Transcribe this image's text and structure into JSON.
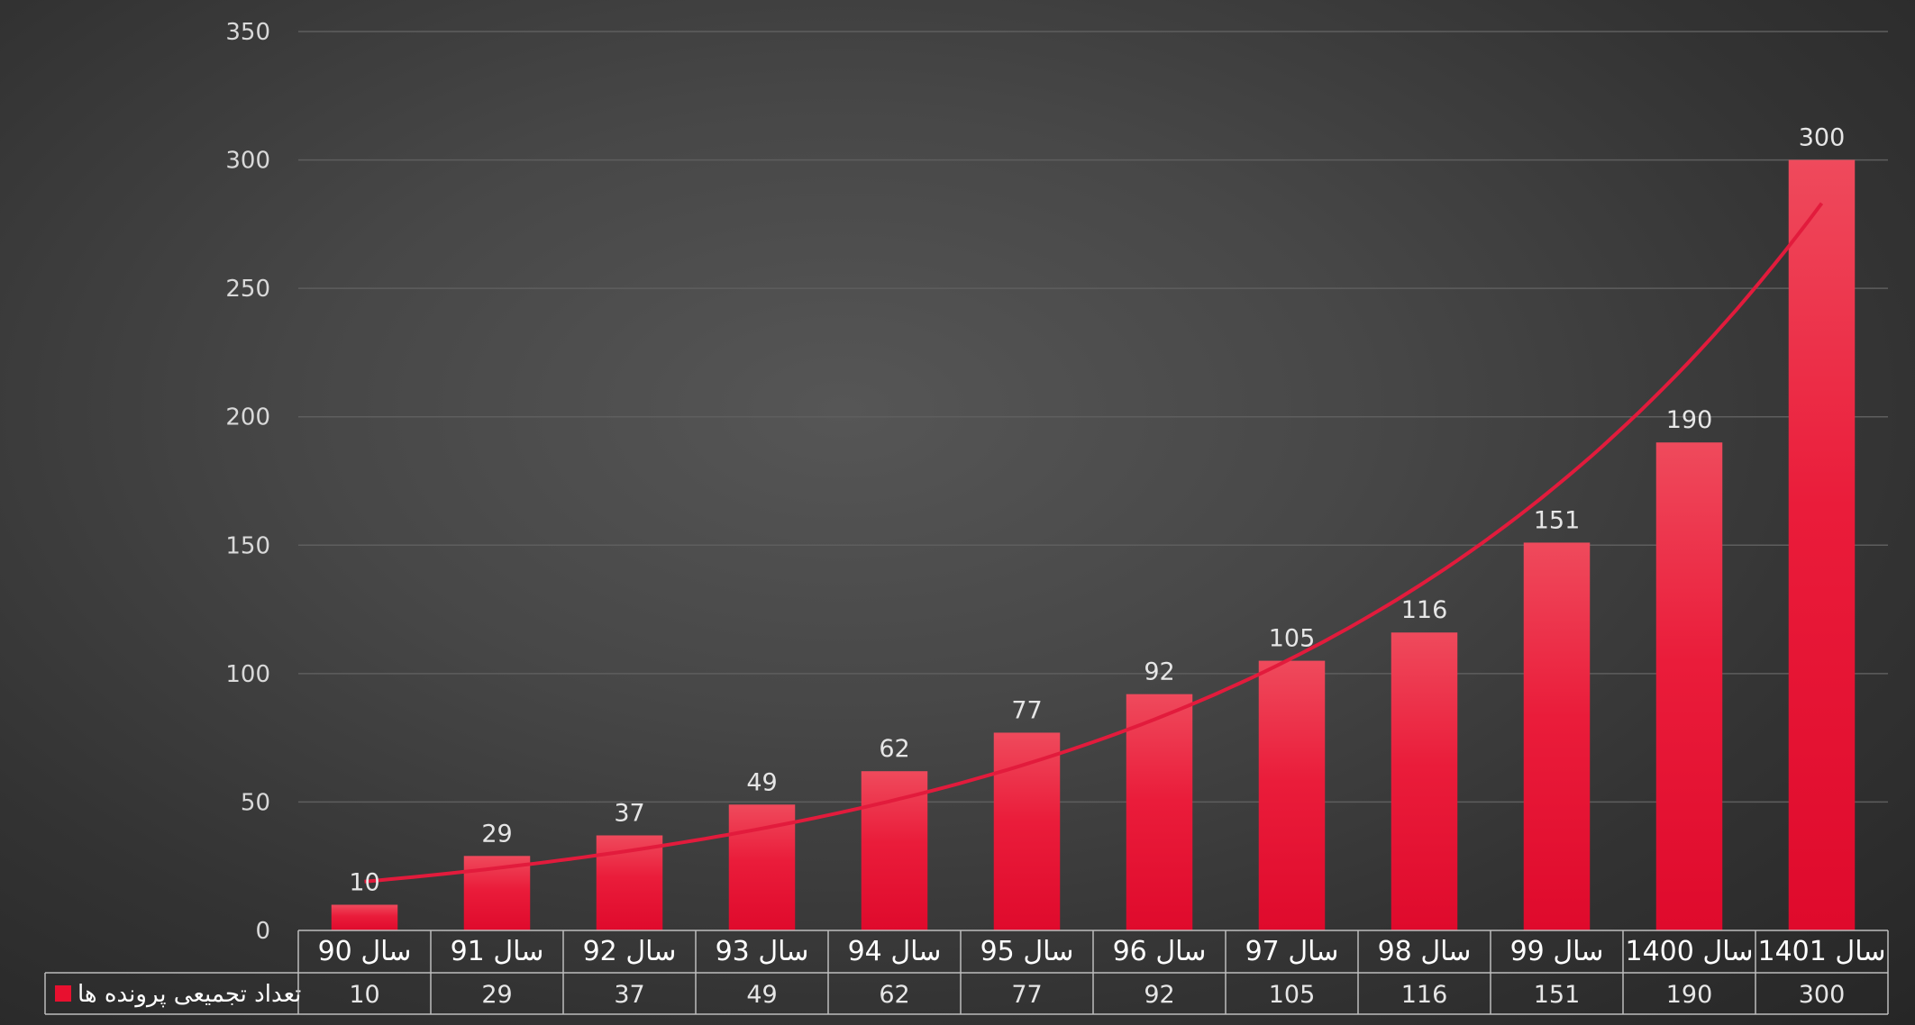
{
  "chart_data": {
    "type": "bar",
    "categories": [
      "سال 90",
      "سال 91",
      "سال 92",
      "سال 93",
      "سال 94",
      "سال 95",
      "سال 96",
      "سال 97",
      "سال 98",
      "سال 99",
      "سال 1400",
      "سال 1401"
    ],
    "series": [
      {
        "name": "تعداد تجمیعی پرونده ها",
        "values": [
          10,
          29,
          37,
          49,
          62,
          77,
          92,
          105,
          116,
          151,
          190,
          300
        ]
      }
    ],
    "ylim": [
      0,
      350
    ],
    "yticks": [
      0,
      50,
      100,
      150,
      200,
      250,
      300,
      350
    ],
    "grid": true,
    "trendline": "exponential",
    "data_table": true,
    "colors": {
      "bar": "#e8102f",
      "bar_light": "#ee4a5c",
      "trend": "#e21b3c",
      "grid": "#5e5e5e"
    }
  }
}
